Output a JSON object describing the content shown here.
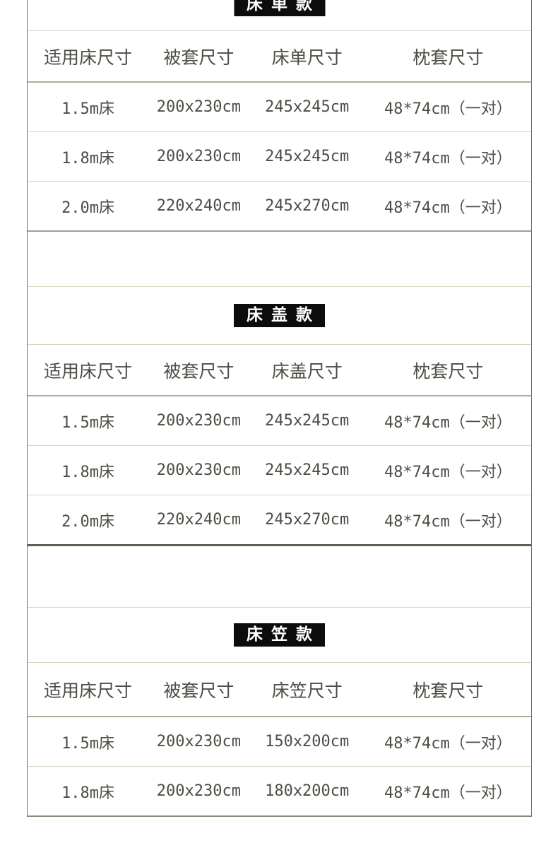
{
  "colors": {
    "chip_bg": "#0c0c0c",
    "chip_text": "#ffffff",
    "text": "#4f4c45",
    "line_light": "#d9d6c7",
    "line_mid": "#b2ae9b",
    "line_dark_a": "#a19e8f",
    "line_dark_b": "#5f5e53",
    "line_dark_c": "#8b897b",
    "frame_border": "#72726c",
    "page_bg": "#ffffff"
  },
  "sections": [
    {
      "id": "bed-sheet-style",
      "title": "床单款",
      "columns": [
        "适用床尺寸",
        "被套尺寸",
        "床单尺寸",
        "枕套尺寸"
      ],
      "rows": [
        [
          "1.5m床",
          "200x230cm",
          "245x245cm",
          "48*74cm（一对）"
        ],
        [
          "1.8m床",
          "200x230cm",
          "245x245cm",
          "48*74cm（一对）"
        ],
        [
          "2.0m床",
          "220x240cm",
          "245x270cm",
          "48*74cm（一对）"
        ]
      ]
    },
    {
      "id": "bed-cover-style",
      "title": "床盖款",
      "columns": [
        "适用床尺寸",
        "被套尺寸",
        "床盖尺寸",
        "枕套尺寸"
      ],
      "rows": [
        [
          "1.5m床",
          "200x230cm",
          "245x245cm",
          "48*74cm（一对）"
        ],
        [
          "1.8m床",
          "200x230cm",
          "245x245cm",
          "48*74cm（一对）"
        ],
        [
          "2.0m床",
          "220x240cm",
          "245x270cm",
          "48*74cm（一对）"
        ]
      ]
    },
    {
      "id": "fitted-sheet-style",
      "title": "床笠款",
      "columns": [
        "适用床尺寸",
        "被套尺寸",
        "床笠尺寸",
        "枕套尺寸"
      ],
      "rows": [
        [
          "1.5m床",
          "200x230cm",
          "150x200cm",
          "48*74cm（一对）"
        ],
        [
          "1.8m床",
          "200x230cm",
          "180x200cm",
          "48*74cm（一对）"
        ]
      ]
    }
  ]
}
